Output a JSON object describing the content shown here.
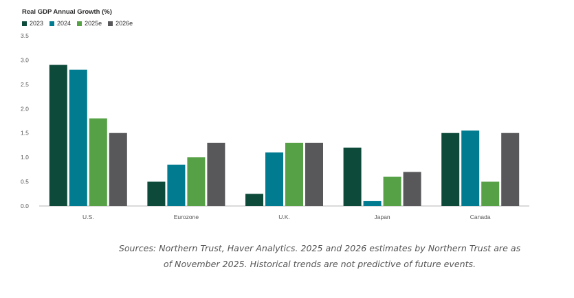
{
  "chart_data": {
    "type": "bar",
    "title": "Real GDP Annual Growth (%)",
    "categories": [
      "U.S.",
      "Eurozone",
      "U.K.",
      "Japan",
      "Canada"
    ],
    "series": [
      {
        "name": "2023",
        "color": "#0d4a3a",
        "values": [
          2.9,
          0.5,
          0.25,
          1.2,
          1.5
        ]
      },
      {
        "name": "2024",
        "color": "#007b8f",
        "values": [
          2.8,
          0.85,
          1.1,
          0.1,
          1.55
        ]
      },
      {
        "name": "2025e",
        "color": "#56a146",
        "values": [
          1.8,
          1.0,
          1.3,
          0.6,
          0.5
        ]
      },
      {
        "name": "2026e",
        "color": "#58585a",
        "values": [
          1.5,
          1.3,
          1.3,
          0.7,
          1.5
        ]
      }
    ],
    "yticks": [
      "0.0",
      "0.5",
      "1.0",
      "1.5",
      "2.0",
      "2.5",
      "3.0",
      "3.5"
    ],
    "ylim": [
      0,
      3.5
    ],
    "legend_position": "top-left",
    "grid": false
  },
  "source_note": {
    "line1": "Sources: Northern Trust, Haver Analytics. 2025 and 2026 estimates by Northern Trust are as",
    "line2": "of November 2025. Historical trends are not predictive of future events."
  }
}
